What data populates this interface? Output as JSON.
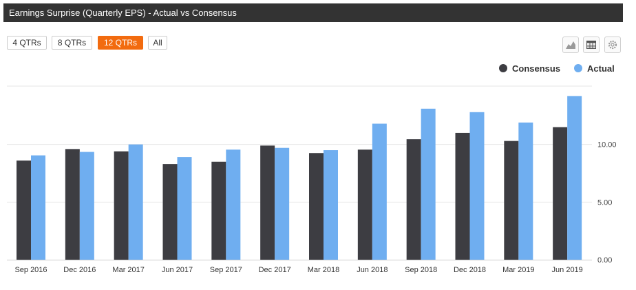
{
  "header": {
    "title": "Earnings Surprise (Quarterly EPS) - Actual vs Consensus"
  },
  "range_buttons": [
    {
      "label": "4 QTRs",
      "active": false
    },
    {
      "label": "8 QTRs",
      "active": false
    },
    {
      "label": "12 QTRs",
      "active": true
    },
    {
      "label": "All",
      "active": false
    }
  ],
  "toolbar": {
    "icons": [
      "area-chart-icon",
      "table-icon",
      "gear-icon"
    ]
  },
  "colors": {
    "title_bar": "#333333",
    "active_button": "#f26b0f",
    "consensus": "#3d3d42",
    "actual": "#6faef0"
  },
  "chart_data": {
    "type": "bar",
    "categories": [
      "Sep 2016",
      "Dec 2016",
      "Mar 2017",
      "Jun 2017",
      "Sep 2017",
      "Dec 2017",
      "Mar 2018",
      "Jun 2018",
      "Sep 2018",
      "Dec 2018",
      "Mar 2019",
      "Jun 2019"
    ],
    "series": [
      {
        "name": "Consensus",
        "color": "#3d3d42",
        "values": [
          8.6,
          9.6,
          9.4,
          8.3,
          8.5,
          9.9,
          9.25,
          9.55,
          10.45,
          11.0,
          10.3,
          11.5
        ]
      },
      {
        "name": "Actual",
        "color": "#6faef0",
        "values": [
          9.05,
          9.35,
          10.0,
          8.9,
          9.55,
          9.7,
          9.5,
          11.8,
          13.1,
          12.8,
          11.9,
          14.2
        ]
      }
    ],
    "y_axis": {
      "side": "right",
      "ticks": [
        "0.00",
        "5.00",
        "10.00"
      ],
      "tick_values": [
        0,
        5,
        10
      ],
      "ylim": [
        0,
        15
      ]
    },
    "legend": {
      "placement": "top-right",
      "entries": [
        "Consensus",
        "Actual"
      ]
    },
    "grid": true
  }
}
